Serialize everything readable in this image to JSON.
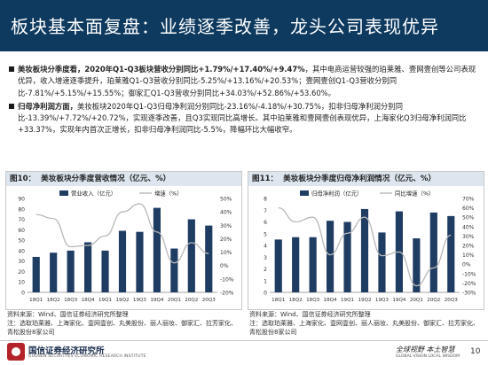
{
  "header": {
    "title": "板块基本面复盘：业绩逐季改善，龙头公司表现优异"
  },
  "bullets": [
    {
      "lead": "美妆板块分季度看，",
      "lead_fig": "2020年Q1-Q3板块营收分别同比+1.79%/+17.40%/+9.47%",
      "body": "，其中电商运营较强的珀莱雅、壹网壹创等公司表现优异，收入增速逐季提升，珀莱雅Q1-Q3营收分别同比-5.25%/+13.16%/+20.53%；壹网壹创Q1-Q3营收分别同比-7.81%/+5.15%/+15.55%；御家汇Q1-Q3营收分别同比+34.03%/+52.86%/+53.60%。"
    },
    {
      "lead": "归母净利润方面，",
      "lead_fig": "",
      "body": "美妆板块2020年Q1-Q3归母净利润分别同比-23.16%/-4.18%/+30.75%，扣非归母净利润分别同比-13.39%/+7.72%/+20.72%，实现逐季改善，且Q3实现同比高增长。其中珀莱雅和壹网壹创表现优异，上海家化Q3归母净利润同比+33.37%，实现年内首次正增长，扣非归母净利润同比-5.5%，降幅环比大幅收窄。"
    }
  ],
  "figures": {
    "fig10": {
      "label": "图10：",
      "title": "美妆板块分季度营收情况（亿元、%）"
    },
    "fig11": {
      "label": "图11：",
      "title": "美妆板块分季度归母净利润情况（亿元、%）"
    }
  },
  "notes": {
    "left_source": "资料来源：Wind、国信证券经济研究所整理",
    "left_note": "注：选取珀莱雅、上海家化、壹网壹创、丸美股份、丽人丽妆、御家汇、拉芳家化、青松股份8家公司",
    "right_source": "资料来源：Wind、国信证券经济研究所整理",
    "right_note": "注：选取珀莱雅、上海家化、壹网壹创、丽人丽妆、丸美股份、御家汇、拉芳家化、青松股份8家公司"
  },
  "footer": {
    "org": "国信证券经济研究所",
    "org_en": "GUOSEN SECURITIES ECONOMIC RESEARCH INSTITUTE",
    "slogan": "全球视野 本土智慧",
    "slogan_en": "GLOBAL VISION   LOCAL WISDOM",
    "page": "10"
  },
  "colors": {
    "header_bg": "#0e3a5f",
    "bar": "#1f3d63",
    "line": "#b8b8b8"
  },
  "chart_data": [
    {
      "type": "bar",
      "categories": [
        "18Q1",
        "18Q2",
        "18Q3",
        "18Q4",
        "19Q1",
        "19Q2",
        "19Q3",
        "19Q4",
        "20Q1",
        "20Q2",
        "20Q3"
      ],
      "series": [
        {
          "name": "营业收入（亿元）",
          "type": "bar",
          "axis": "left",
          "values": [
            34,
            38,
            40,
            48,
            40,
            59,
            58,
            81,
            42,
            70,
            64
          ]
        },
        {
          "name": "增速（%）",
          "type": "line",
          "axis": "right",
          "values": [
            38,
            35,
            14,
            15,
            22,
            40,
            46,
            25,
            2,
            17,
            9
          ]
        }
      ],
      "y_left": {
        "range": [
          0,
          90
        ],
        "ticks": [
          0,
          10,
          20,
          30,
          40,
          50,
          60,
          70,
          80,
          90
        ]
      },
      "y_right": {
        "range": [
          -20,
          50
        ],
        "ticks": [
          "-20%",
          "-10%",
          "0%",
          "10%",
          "20%",
          "30%",
          "40%",
          "50%"
        ]
      },
      "legend": "top"
    },
    {
      "type": "bar",
      "categories": [
        "18Q1",
        "18Q2",
        "18Q3",
        "18Q4",
        "19Q1",
        "19Q2",
        "19Q3",
        "19Q4",
        "20Q1",
        "20Q2",
        "20Q3"
      ],
      "series": [
        {
          "name": "归母净利润（亿元）",
          "type": "bar",
          "axis": "left",
          "values": [
            4.5,
            4.7,
            4.7,
            6.1,
            6.0,
            7.1,
            5.1,
            6.9,
            4.6,
            6.8,
            6.5
          ]
        },
        {
          "name": "同比增速（%）",
          "type": "line",
          "axis": "right",
          "values": [
            60,
            45,
            50,
            10,
            33,
            50,
            9,
            13,
            -23,
            -4,
            31
          ]
        }
      ],
      "y_left": {
        "range": [
          0,
          8
        ],
        "ticks": [
          0,
          1,
          2,
          3,
          4,
          5,
          6,
          7,
          8
        ]
      },
      "y_right": {
        "range": [
          -30,
          70
        ],
        "ticks": [
          "-30%",
          "-20%",
          "-10%",
          "0%",
          "10%",
          "20%",
          "30%",
          "40%",
          "50%",
          "60%",
          "70%"
        ]
      },
      "legend": "top"
    }
  ]
}
